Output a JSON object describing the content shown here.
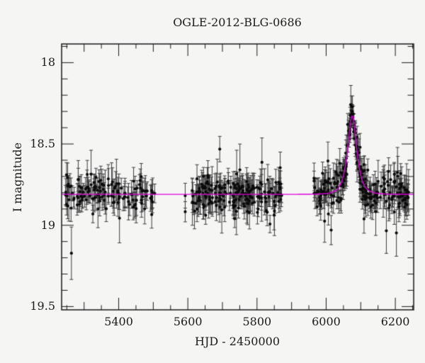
{
  "page": {
    "background": "#f5f5f4",
    "ink": "#1a1a1a"
  },
  "chart_data": {
    "type": "scatter",
    "title": "OGLE-2012-BLG-0686",
    "xlabel": "HJD - 2450000",
    "ylabel": "I magnitude",
    "xlim": [
      5235,
      6253
    ],
    "ylim": [
      17.885,
      19.52
    ],
    "y_inverted": true,
    "grid": false,
    "legend": null,
    "x_ticks": [
      5400,
      5600,
      5800,
      6000,
      6200
    ],
    "x_minor_step": 50,
    "x_medium_step": 100,
    "x_major_step": 200,
    "y_ticks": [
      18,
      18.5,
      19,
      19.5
    ],
    "y_minor_step": 0.1,
    "y_major_step": 0.5,
    "model": {
      "name": "paczynski-microlensing-fit",
      "baseline_mag": 18.81,
      "t0": 6075,
      "tE": 18,
      "u0": 0.78,
      "peak_mag": 18.33,
      "color": "#dd00dd"
    },
    "points_style": {
      "color": "#0a0a0a",
      "radius": 2.1,
      "errorbar_color": "#3c3c3c",
      "cap_half_width": 2.5
    },
    "seasons": [
      {
        "name": "season-2010",
        "t_start": 5246,
        "t_end": 5505,
        "n": 135
      },
      {
        "name": "bridge-points",
        "t_start": 5585,
        "t_end": 5598,
        "n": 2
      },
      {
        "name": "season-2011",
        "t_start": 5612,
        "t_end": 5873,
        "n": 205
      },
      {
        "name": "season-2012",
        "t_start": 5965,
        "t_end": 6241,
        "n": 240
      },
      {
        "name": "season-2012-peak",
        "t_start": 6040,
        "t_end": 6110,
        "n": 45
      }
    ],
    "noise": {
      "sigma": 0.052,
      "err_min": 0.045,
      "err_max": 0.095,
      "outlier_prob": 0.1,
      "outlier_sigma_factor": 2.3,
      "outlier_err_factor": 1.7,
      "seed": 20120686
    }
  }
}
